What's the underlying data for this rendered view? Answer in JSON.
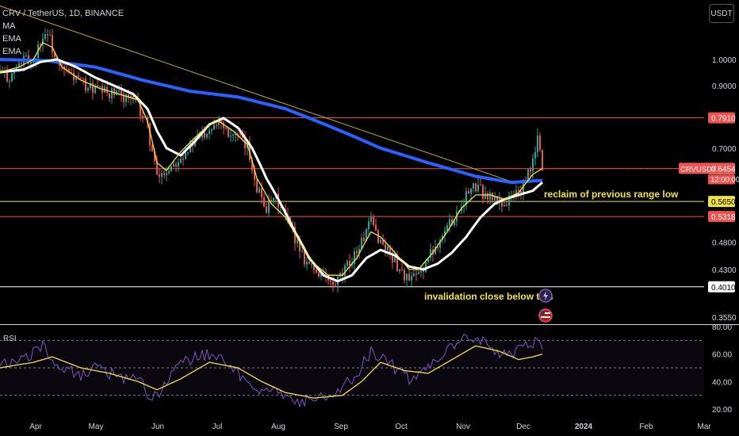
{
  "header": {
    "title": "CRV / TetherUS, 1D, BINANCE",
    "indicators": [
      "MA",
      "EMA",
      "EMA"
    ]
  },
  "unit_button": "USDT",
  "colors": {
    "background": "#000000",
    "up_candle": "#26a69a",
    "down_candle": "#ef5350",
    "ma": "#2962ff",
    "ema_fast": "#f0e441",
    "ema_slow": "#ffffff",
    "trendline": "#c9b037",
    "red_level": "#ef5350",
    "yellow_level": "#f0e441",
    "rsi": "#7e57c2",
    "rsi_ma": "#f0e441"
  },
  "chart_data": [
    {
      "type": "candlestick",
      "symbol": "CRVUSDT",
      "interval": "1D",
      "x_axis_labels": [
        "Apr",
        "May",
        "Jun",
        "Jul",
        "Aug",
        "Sep",
        "Oct",
        "Nov",
        "Dec",
        "2024",
        "Feb",
        "Mar"
      ],
      "y_axis_ticks": [
        "1.0000",
        "0.9000",
        "0.7000",
        "0.4800",
        "0.4300",
        "0.3550"
      ],
      "log_scale": true,
      "ylim": [
        0.355,
        1.25
      ],
      "close_path": [
        [
          0,
          0.95
        ],
        [
          4,
          0.93
        ],
        [
          10,
          1.0
        ],
        [
          14,
          0.99
        ],
        [
          17,
          1.08
        ],
        [
          20,
          1.12
        ],
        [
          24,
          0.97
        ],
        [
          30,
          0.94
        ],
        [
          36,
          0.9
        ],
        [
          42,
          0.88
        ],
        [
          48,
          0.87
        ],
        [
          54,
          0.86
        ],
        [
          58,
          0.83
        ],
        [
          62,
          0.76
        ],
        [
          66,
          0.62
        ],
        [
          70,
          0.64
        ],
        [
          76,
          0.68
        ],
        [
          82,
          0.72
        ],
        [
          88,
          0.76
        ],
        [
          92,
          0.79
        ],
        [
          96,
          0.75
        ],
        [
          100,
          0.73
        ],
        [
          104,
          0.7
        ],
        [
          108,
          0.6
        ],
        [
          112,
          0.55
        ],
        [
          116,
          0.57
        ],
        [
          120,
          0.53
        ],
        [
          124,
          0.49
        ],
        [
          128,
          0.45
        ],
        [
          132,
          0.43
        ],
        [
          136,
          0.42
        ],
        [
          140,
          0.4
        ],
        [
          144,
          0.42
        ],
        [
          148,
          0.45
        ],
        [
          152,
          0.48
        ],
        [
          156,
          0.52
        ],
        [
          160,
          0.48
        ],
        [
          164,
          0.46
        ],
        [
          168,
          0.43
        ],
        [
          172,
          0.41
        ],
        [
          176,
          0.42
        ],
        [
          180,
          0.45
        ],
        [
          184,
          0.48
        ],
        [
          188,
          0.51
        ],
        [
          192,
          0.54
        ],
        [
          196,
          0.58
        ],
        [
          200,
          0.6
        ],
        [
          204,
          0.58
        ],
        [
          208,
          0.57
        ],
        [
          212,
          0.56
        ],
        [
          216,
          0.58
        ],
        [
          220,
          0.6
        ],
        [
          224,
          0.66
        ],
        [
          226,
          0.73
        ],
        [
          228,
          0.6454
        ]
      ],
      "ma_path": [
        [
          0,
          1.0
        ],
        [
          20,
          0.995
        ],
        [
          40,
          0.97
        ],
        [
          60,
          0.92
        ],
        [
          80,
          0.88
        ],
        [
          100,
          0.86
        ],
        [
          120,
          0.82
        ],
        [
          140,
          0.76
        ],
        [
          160,
          0.7
        ],
        [
          180,
          0.66
        ],
        [
          200,
          0.625
        ],
        [
          215,
          0.61
        ],
        [
          228,
          0.615
        ]
      ],
      "ema_slow_path": [
        [
          0,
          0.95
        ],
        [
          10,
          0.96
        ],
        [
          17,
          0.99
        ],
        [
          24,
          1.0
        ],
        [
          32,
          0.97
        ],
        [
          40,
          0.93
        ],
        [
          48,
          0.9
        ],
        [
          56,
          0.87
        ],
        [
          62,
          0.82
        ],
        [
          66,
          0.75
        ],
        [
          70,
          0.7
        ],
        [
          76,
          0.68
        ],
        [
          82,
          0.72
        ],
        [
          88,
          0.77
        ],
        [
          94,
          0.79
        ],
        [
          100,
          0.76
        ],
        [
          106,
          0.7
        ],
        [
          112,
          0.62
        ],
        [
          118,
          0.56
        ],
        [
          124,
          0.5
        ],
        [
          130,
          0.45
        ],
        [
          136,
          0.42
        ],
        [
          142,
          0.41
        ],
        [
          148,
          0.42
        ],
        [
          154,
          0.45
        ],
        [
          160,
          0.465
        ],
        [
          166,
          0.455
        ],
        [
          172,
          0.435
        ],
        [
          178,
          0.43
        ],
        [
          184,
          0.44
        ],
        [
          190,
          0.46
        ],
        [
          196,
          0.49
        ],
        [
          202,
          0.53
        ],
        [
          208,
          0.56
        ],
        [
          212,
          0.57
        ],
        [
          218,
          0.58
        ],
        [
          224,
          0.59
        ],
        [
          228,
          0.61
        ]
      ],
      "ema_fast_path": [
        [
          0,
          0.95
        ],
        [
          8,
          0.97
        ],
        [
          14,
          1.0
        ],
        [
          18,
          1.07
        ],
        [
          22,
          1.05
        ],
        [
          26,
          0.97
        ],
        [
          34,
          0.92
        ],
        [
          42,
          0.89
        ],
        [
          50,
          0.87
        ],
        [
          58,
          0.85
        ],
        [
          62,
          0.78
        ],
        [
          66,
          0.66
        ],
        [
          70,
          0.64
        ],
        [
          76,
          0.69
        ],
        [
          82,
          0.73
        ],
        [
          88,
          0.77
        ],
        [
          92,
          0.78
        ],
        [
          98,
          0.75
        ],
        [
          104,
          0.71
        ],
        [
          108,
          0.62
        ],
        [
          114,
          0.56
        ],
        [
          120,
          0.53
        ],
        [
          126,
          0.48
        ],
        [
          132,
          0.44
        ],
        [
          138,
          0.42
        ],
        [
          144,
          0.42
        ],
        [
          150,
          0.45
        ],
        [
          156,
          0.5
        ],
        [
          160,
          0.49
        ],
        [
          166,
          0.46
        ],
        [
          172,
          0.43
        ],
        [
          176,
          0.43
        ],
        [
          182,
          0.46
        ],
        [
          188,
          0.5
        ],
        [
          194,
          0.55
        ],
        [
          200,
          0.58
        ],
        [
          206,
          0.58
        ],
        [
          212,
          0.57
        ],
        [
          218,
          0.585
        ],
        [
          224,
          0.63
        ],
        [
          228,
          0.645
        ]
      ],
      "trendline": {
        "from": [
          0,
          1.24
        ],
        "to": [
          216,
          0.61
        ]
      },
      "levels": [
        {
          "label": "0.7910",
          "price": 0.791,
          "color": "#ef5350"
        },
        {
          "label": "0.6447",
          "price": 0.6447,
          "color": "#ef5350"
        },
        {
          "label": "0.5650",
          "price": 0.565,
          "color": "#f0e441"
        },
        {
          "label": "0.5318",
          "price": 0.5318,
          "color": "#ef5350"
        },
        {
          "label": "0.4010",
          "price": 0.401,
          "color": "#ffffff"
        }
      ],
      "last_price_tag": {
        "symbol": "CRVUSDT",
        "price": "0.6454",
        "countdown": "12:00:00"
      },
      "annotations": [
        "reclaim of previous range low",
        "invalidation close below this"
      ]
    },
    {
      "type": "line",
      "title": "RSI",
      "y_axis_ticks": [
        "80.00",
        "60.00",
        "40.00",
        "20.00"
      ],
      "ylim": [
        20,
        80
      ],
      "bands": [
        70,
        50,
        30
      ],
      "series": [
        {
          "color": "#7e57c2",
          "values": [
            [
              0,
              52
            ],
            [
              6,
              54
            ],
            [
              12,
              58
            ],
            [
              18,
              66
            ],
            [
              22,
              56
            ],
            [
              28,
              48
            ],
            [
              34,
              44
            ],
            [
              40,
              50
            ],
            [
              46,
              46
            ],
            [
              52,
              42
            ],
            [
              58,
              44
            ],
            [
              62,
              32
            ],
            [
              66,
              28
            ],
            [
              70,
              40
            ],
            [
              76,
              52
            ],
            [
              82,
              58
            ],
            [
              88,
              60
            ],
            [
              94,
              54
            ],
            [
              100,
              46
            ],
            [
              106,
              38
            ],
            [
              110,
              34
            ],
            [
              116,
              36
            ],
            [
              120,
              28
            ],
            [
              126,
              26
            ],
            [
              132,
              28
            ],
            [
              138,
              30
            ],
            [
              144,
              36
            ],
            [
              150,
              46
            ],
            [
              156,
              62
            ],
            [
              160,
              58
            ],
            [
              166,
              50
            ],
            [
              172,
              42
            ],
            [
              176,
              46
            ],
            [
              182,
              56
            ],
            [
              188,
              62
            ],
            [
              194,
              70
            ],
            [
              200,
              72
            ],
            [
              206,
              66
            ],
            [
              212,
              60
            ],
            [
              218,
              62
            ],
            [
              222,
              66
            ],
            [
              226,
              72
            ],
            [
              228,
              62
            ]
          ]
        },
        {
          "color": "#f0e441",
          "values": [
            [
              0,
              50
            ],
            [
              14,
              54
            ],
            [
              22,
              58
            ],
            [
              34,
              50
            ],
            [
              46,
              46
            ],
            [
              58,
              40
            ],
            [
              66,
              34
            ],
            [
              76,
              42
            ],
            [
              88,
              54
            ],
            [
              100,
              50
            ],
            [
              110,
              40
            ],
            [
              120,
              32
            ],
            [
              132,
              28
            ],
            [
              144,
              30
            ],
            [
              152,
              40
            ],
            [
              160,
              54
            ],
            [
              170,
              48
            ],
            [
              180,
              46
            ],
            [
              190,
              56
            ],
            [
              200,
              66
            ],
            [
              210,
              62
            ],
            [
              218,
              56
            ],
            [
              224,
              58
            ],
            [
              228,
              60
            ]
          ]
        }
      ]
    }
  ]
}
